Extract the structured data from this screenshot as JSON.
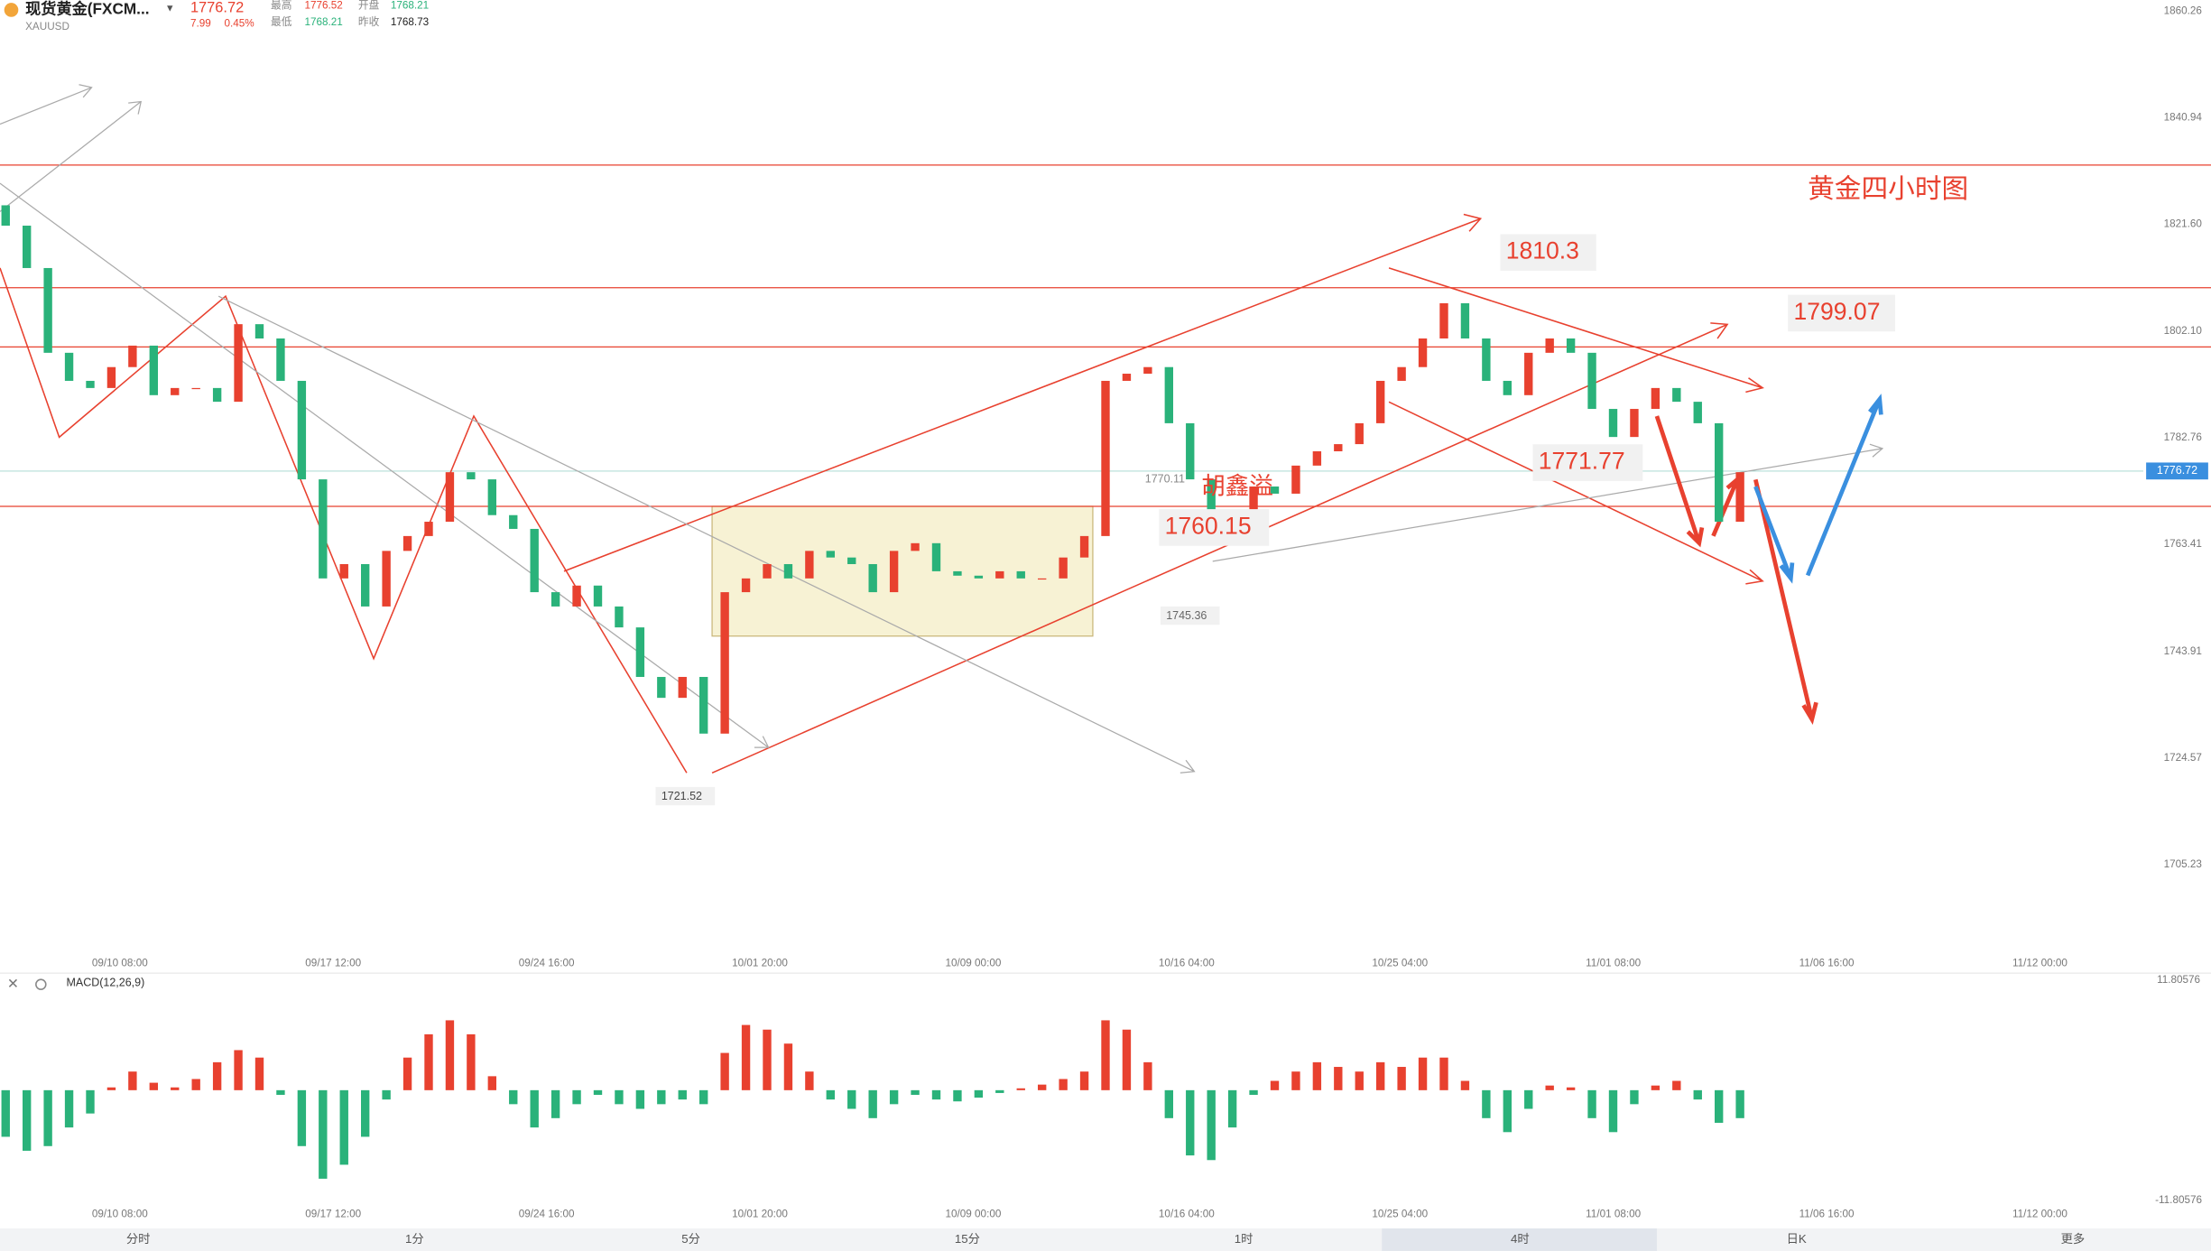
{
  "header": {
    "name": "现货黄金(FXCM...",
    "symbol": "XAUUSD",
    "price": 1776.72,
    "change": "7.99",
    "change_pct": "0.45%",
    "stats": [
      {
        "label": "最高",
        "value": "1776.52"
      },
      {
        "label": "开盘",
        "value": "1768.21"
      },
      {
        "label": "最低",
        "value": "1768.21"
      },
      {
        "label": "昨收",
        "value": "1768.73"
      }
    ]
  },
  "chart_data": {
    "type": "candlestick",
    "title": "黄金四小时图",
    "up_color": "#e8412f",
    "down_color": "#2ab27a",
    "open": [
      1825.0,
      1821.3,
      1813.6,
      1798.2,
      1793.1,
      1791.8,
      1795.6,
      1799.5,
      1790.5,
      1791.8,
      1791.8,
      1789.3,
      1803.4,
      1800.8,
      1793.1,
      1775.2,
      1757.2,
      1759.8,
      1752.1,
      1762.2,
      1764.9,
      1767.5,
      1776.5,
      1775.2,
      1768.7,
      1766.2,
      1754.7,
      1752.1,
      1755.9,
      1752.1,
      1748.3,
      1739.3,
      1735.5,
      1739.3,
      1729.0,
      1754.7,
      1757.2,
      1759.8,
      1757.2,
      1762.2,
      1761.0,
      1759.8,
      1754.7,
      1762.2,
      1763.6,
      1758.5,
      1757.7,
      1757.2,
      1758.5,
      1757.2,
      1757.2,
      1761.0,
      1764.9,
      1793.1,
      1794.4,
      1795.6,
      1785.4,
      1775.2,
      1768.7,
      1767.5,
      1773.9,
      1772.6,
      1777.7,
      1780.3,
      1781.6,
      1785.4,
      1793.1,
      1795.6,
      1800.8,
      1807.2,
      1800.8,
      1793.1,
      1790.5,
      1798.2,
      1800.8,
      1798.2,
      1788.0,
      1782.9,
      1788.0,
      1791.8,
      1789.3,
      1785.4,
      1767.5
    ],
    "close": [
      1821.3,
      1813.6,
      1798.2,
      1793.1,
      1791.8,
      1795.6,
      1799.5,
      1790.5,
      1791.8,
      1791.8,
      1789.3,
      1803.4,
      1800.8,
      1793.1,
      1775.2,
      1757.2,
      1759.8,
      1752.1,
      1762.2,
      1764.9,
      1767.5,
      1776.5,
      1775.2,
      1768.7,
      1766.2,
      1754.7,
      1752.1,
      1755.9,
      1752.1,
      1748.3,
      1739.3,
      1735.5,
      1739.3,
      1729.0,
      1754.7,
      1757.2,
      1759.8,
      1757.2,
      1762.2,
      1761.0,
      1759.8,
      1754.7,
      1762.2,
      1763.6,
      1758.5,
      1757.7,
      1757.2,
      1758.5,
      1757.2,
      1757.2,
      1761.0,
      1764.9,
      1793.1,
      1794.4,
      1795.6,
      1785.4,
      1775.2,
      1768.7,
      1767.5,
      1773.9,
      1772.6,
      1777.7,
      1780.3,
      1781.6,
      1785.4,
      1793.1,
      1795.6,
      1800.8,
      1807.2,
      1800.8,
      1793.1,
      1790.5,
      1798.2,
      1800.8,
      1798.2,
      1788.0,
      1782.9,
      1788.0,
      1791.8,
      1789.3,
      1785.4,
      1767.5,
      1776.5
    ],
    "ylim": [
      1690.6,
      1862.3
    ],
    "yticks": [
      1860.26,
      1840.94,
      {
        "value": 1821.6,
        "label": "1821.60"
      },
      {
        "value": 1802.1,
        "label": "1802.10"
      },
      1782.76,
      1763.41,
      1743.91,
      1724.57,
      1705.23
    ],
    "x_labels": [
      "09/10 08:00",
      "09/17 12:00",
      "09/24 16:00",
      "10/01 20:00",
      "10/09 00:00",
      "10/16 04:00",
      "10/25 04:00",
      "11/01 08:00",
      "11/06 16:00",
      "11/12 00:00"
    ],
    "annotations": [
      "1810.3",
      "1799.07",
      "1771.77",
      "1760.15",
      "胡鑫溢",
      "1721.52",
      "1745.36",
      "1770.11"
    ],
    "macd": {
      "title": "MACD(12,26,9)",
      "ylim": [
        -11.80576,
        11.80576
      ],
      "yticks": [
        11.80576,
        -11.80576
      ],
      "values": [
        -5,
        -6.5,
        -6,
        -4,
        -2.5,
        0.3,
        2,
        0.8,
        0.3,
        1.2,
        3,
        4.3,
        3.5,
        -0.5,
        -6,
        -9.5,
        -8,
        -5,
        -1,
        3.5,
        6,
        7.5,
        6,
        1.5,
        -1.5,
        -4,
        -3,
        -1.5,
        -0.5,
        -1.5,
        -2,
        -1.5,
        -1,
        -1.5,
        4,
        7,
        6.5,
        5,
        2,
        -1,
        -2,
        -3,
        -1.5,
        -0.5,
        -1,
        -1.2,
        -0.8,
        -0.3,
        0.2,
        0.6,
        1.2,
        2,
        7.5,
        6.5,
        3,
        -3,
        -7,
        -7.5,
        -4,
        -0.5,
        1,
        2,
        3,
        2.5,
        2,
        3,
        2.5,
        3.5,
        3.5,
        1,
        -3,
        -4.5,
        -2,
        0.5,
        0.3,
        -3,
        -4.5,
        -1.5,
        0.5,
        1,
        -1,
        -3.5,
        -3
      ]
    }
  },
  "tabs": [
    "分时",
    "1分",
    "5分",
    "15分",
    "1时",
    "4时",
    "日K",
    "更多"
  ]
}
